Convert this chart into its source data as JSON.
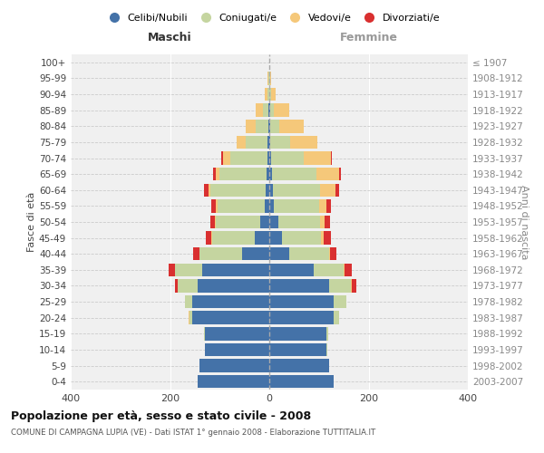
{
  "age_groups": [
    "0-4",
    "5-9",
    "10-14",
    "15-19",
    "20-24",
    "25-29",
    "30-34",
    "35-39",
    "40-44",
    "45-49",
    "50-54",
    "55-59",
    "60-64",
    "65-69",
    "70-74",
    "75-79",
    "80-84",
    "85-89",
    "90-94",
    "95-99",
    "100+"
  ],
  "birth_years": [
    "2003-2007",
    "1998-2002",
    "1993-1997",
    "1988-1992",
    "1983-1987",
    "1978-1982",
    "1973-1977",
    "1968-1972",
    "1963-1967",
    "1958-1962",
    "1953-1957",
    "1948-1952",
    "1943-1947",
    "1938-1942",
    "1933-1937",
    "1928-1932",
    "1923-1927",
    "1918-1922",
    "1913-1917",
    "1908-1912",
    "≤ 1907"
  ],
  "colors": {
    "celibe": "#4472A8",
    "coniugato": "#C5D5A0",
    "vedovo": "#F5C87A",
    "divorziato": "#D93030"
  },
  "males": {
    "celibe": [
      145,
      140,
      130,
      130,
      155,
      155,
      145,
      135,
      55,
      30,
      18,
      10,
      8,
      5,
      4,
      3,
      2,
      2,
      0,
      0,
      0
    ],
    "coniugato": [
      0,
      0,
      0,
      2,
      5,
      15,
      40,
      55,
      85,
      85,
      90,
      95,
      110,
      95,
      75,
      45,
      25,
      10,
      4,
      1,
      0
    ],
    "vedovo": [
      0,
      0,
      0,
      0,
      2,
      0,
      0,
      0,
      1,
      1,
      1,
      2,
      5,
      8,
      15,
      18,
      20,
      15,
      5,
      2,
      0
    ],
    "divorziato": [
      0,
      0,
      0,
      0,
      0,
      0,
      5,
      12,
      12,
      12,
      10,
      10,
      8,
      5,
      2,
      0,
      0,
      0,
      0,
      0,
      0
    ]
  },
  "females": {
    "nubile": [
      130,
      120,
      115,
      115,
      130,
      130,
      120,
      90,
      40,
      25,
      18,
      10,
      8,
      5,
      4,
      2,
      2,
      2,
      0,
      0,
      0
    ],
    "coniugata": [
      0,
      0,
      2,
      4,
      10,
      25,
      45,
      60,
      80,
      80,
      85,
      90,
      95,
      90,
      65,
      40,
      18,
      8,
      3,
      1,
      0
    ],
    "vedova": [
      0,
      0,
      0,
      0,
      0,
      0,
      2,
      2,
      2,
      5,
      8,
      15,
      30,
      45,
      55,
      55,
      50,
      30,
      10,
      2,
      0
    ],
    "divorziata": [
      0,
      0,
      0,
      0,
      0,
      0,
      8,
      14,
      14,
      14,
      12,
      10,
      8,
      5,
      2,
      0,
      0,
      0,
      0,
      0,
      0
    ]
  },
  "title": "Popolazione per età, sesso e stato civile - 2008",
  "subtitle": "COMUNE DI CAMPAGNA LUPIA (VE) - Dati ISTAT 1° gennaio 2008 - Elaborazione TUTTITALIA.IT",
  "xlabel_left": "Maschi",
  "xlabel_right": "Femmine",
  "ylabel_left": "Fasce di età",
  "ylabel_right": "Anni di nascita",
  "xlim": 400,
  "bg_color": "#f0f0f0"
}
